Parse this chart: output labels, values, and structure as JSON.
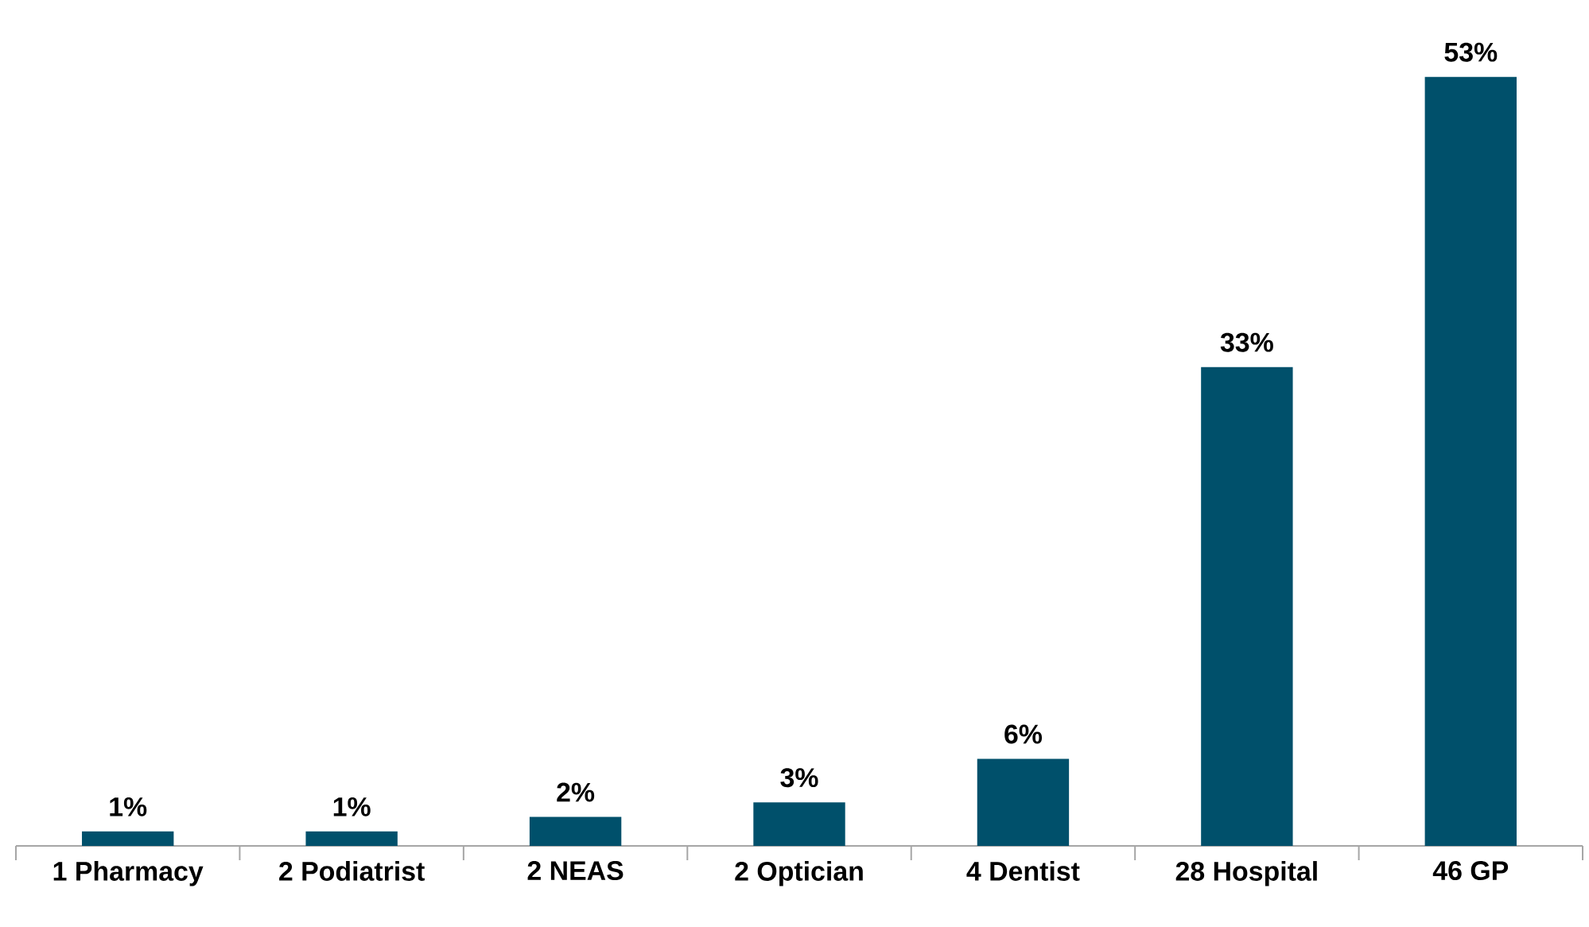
{
  "chart_data": {
    "type": "bar",
    "categories": [
      "1 Pharmacy",
      "2 Podiatrist",
      "2 NEAS",
      "2 Optician",
      "4 Dentist",
      "28 Hospital",
      "46 GP"
    ],
    "values": [
      1,
      1,
      2,
      3,
      6,
      33,
      53
    ],
    "value_labels": [
      "1%",
      "1%",
      "2%",
      "3%",
      "6%",
      "33%",
      "53%"
    ],
    "color": "#00506b"
  }
}
